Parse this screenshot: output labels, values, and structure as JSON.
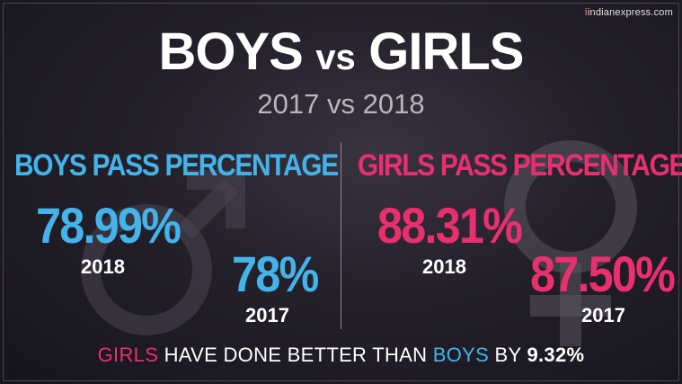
{
  "brand": {
    "mark": "i",
    "text": "indianexpress.com"
  },
  "title": {
    "left": "BOYS",
    "vs": "vs",
    "right": "GIRLS"
  },
  "subtitle": "2017 vs 2018",
  "boys": {
    "heading": "BOYS PASS PERCENTAGE",
    "value_2018": "78.99%",
    "year_2018": "2018",
    "value_2017": "78%",
    "year_2017": "2017"
  },
  "girls": {
    "heading": "GIRLS PASS PERCENTAGE",
    "value_2018": "88.31%",
    "year_2018": "2018",
    "value_2017": "87.50%",
    "year_2017": "2017"
  },
  "footer": {
    "girls": "GIRLS",
    "middle": " HAVE DONE BETTER THAN ",
    "boys": "BOYS",
    "by": " BY ",
    "value": "9.32%"
  },
  "colors": {
    "boys": "#44b3ea",
    "girls": "#ea2f6f",
    "background": "#1d1a22"
  },
  "icons": [
    "male-symbol-icon",
    "female-symbol-icon"
  ]
}
